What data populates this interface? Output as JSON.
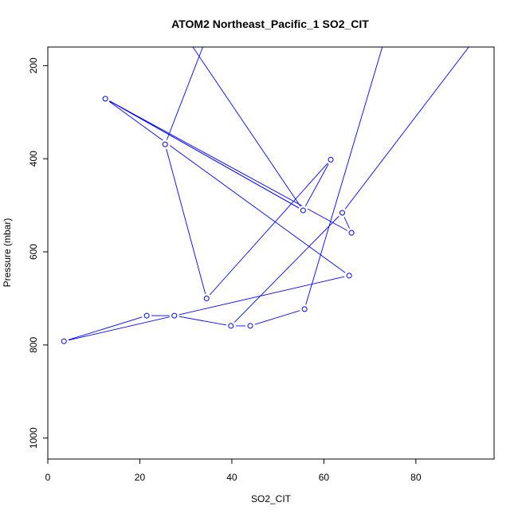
{
  "chart_data": {
    "type": "line",
    "title": "ATOM2 Northeast_Pacific_1 SO2_CIT",
    "xlabel": "SO2_CIT",
    "ylabel": "Pressure (mbar)",
    "xlim": [
      0,
      97
    ],
    "ylim": [
      1045,
      160
    ],
    "y_inverted": true,
    "xticks": [
      0,
      20,
      40,
      60,
      80
    ],
    "yticks": [
      200,
      400,
      600,
      800,
      1000
    ],
    "series_color": "#0000ff",
    "marker": "open-circle",
    "series": [
      {
        "points": [
          {
            "x": 38,
            "y": 50
          },
          {
            "x": 25.5,
            "y": 369
          },
          {
            "x": 34.5,
            "y": 700
          },
          {
            "x": 61.5,
            "y": 402
          },
          {
            "x": 55.5,
            "y": 511
          },
          {
            "x": 12.5,
            "y": 271
          },
          {
            "x": 65.5,
            "y": 651
          },
          {
            "x": 3.5,
            "y": 792
          },
          {
            "x": 21.5,
            "y": 737
          },
          {
            "x": 27.5,
            "y": 737
          },
          {
            "x": 39.8,
            "y": 759
          },
          {
            "x": 44,
            "y": 759
          },
          {
            "x": 55.8,
            "y": 723
          },
          {
            "x": 76,
            "y": 50
          }
        ]
      },
      {
        "points": [
          {
            "x": 24,
            "y": 50
          },
          {
            "x": 55.5,
            "y": 511
          },
          {
            "x": 12.5,
            "y": 271
          },
          {
            "x": 66,
            "y": 559
          },
          {
            "x": 64,
            "y": 516
          },
          {
            "x": 39.8,
            "y": 759
          },
          {
            "x": 64,
            "y": 516
          },
          {
            "x": 100,
            "y": 50
          }
        ]
      }
    ],
    "markers": [
      {
        "x": 25.5,
        "y": 369
      },
      {
        "x": 12.5,
        "y": 271
      },
      {
        "x": 34.5,
        "y": 700
      },
      {
        "x": 61.5,
        "y": 402
      },
      {
        "x": 55.5,
        "y": 511
      },
      {
        "x": 64,
        "y": 516
      },
      {
        "x": 66,
        "y": 559
      },
      {
        "x": 65.5,
        "y": 651
      },
      {
        "x": 55.8,
        "y": 723
      },
      {
        "x": 21.5,
        "y": 737
      },
      {
        "x": 27.5,
        "y": 737
      },
      {
        "x": 39.8,
        "y": 759
      },
      {
        "x": 44,
        "y": 759
      },
      {
        "x": 3.5,
        "y": 792
      }
    ]
  }
}
